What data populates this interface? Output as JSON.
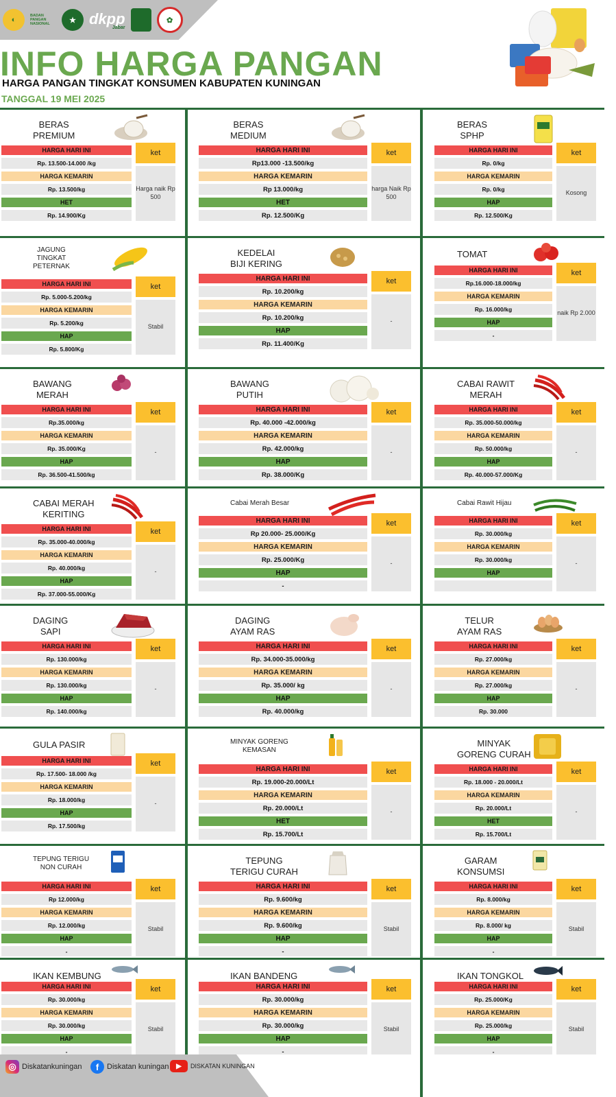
{
  "header": {
    "title": "INFO HARGA PANGAN",
    "subtitle": "HARGA PANGAN TINGKAT KONSUMEN  KABUPATEN KUNINGAN",
    "date": "TANGGAL 19 MEI 2025",
    "logo_bapanas": "BADAN PANGAN NASIONAL",
    "logo_dkpp": "dkpp",
    "logo_dkpp_sub": "Jabar"
  },
  "colors": {
    "green": "#6aa84f",
    "red": "#f04f4f",
    "orange": "#fbd7a0",
    "yellow": "#fbbf2e",
    "divider": "#2a6b3a"
  },
  "items": [
    {
      "name_lines": [
        "BERAS",
        "PREMIUM"
      ],
      "icon": "rice-sack-icon",
      "today_label": "HARGA HARI INI",
      "today": "Rp. 13.500-14.000 /kg",
      "yesterday_label": "HARGA KEMARIN",
      "yesterday": "Rp. 13.500/kg",
      "ref_label": "HET",
      "ref": "Rp. 14.900/Kg",
      "ket_label": "ket",
      "ket": "Harga naik Rp 500"
    },
    {
      "name_lines": [
        "BERAS",
        "MEDIUM"
      ],
      "icon": "rice-sack-icon",
      "today_label": "HARGA HARI INI",
      "today": "Rp13.000 -13.500/kg",
      "yesterday_label": "HARGA KEMARIN",
      "yesterday": "Rp 13.000/kg",
      "ref_label": "HET",
      "ref": "Rp. 12.500/Kg",
      "ket_label": "ket",
      "ket": "harga Naik Rp 500"
    },
    {
      "name_lines": [
        "BERAS",
        "SPHP"
      ],
      "icon": "rice-bag-icon",
      "today_label": "HARGA HARI INI",
      "today": "Rp. 0/kg",
      "yesterday_label": "HARGA KEMARIN",
      "yesterday": "Rp. 0/kg",
      "ref_label": "HAP",
      "ref": "Rp. 12.500/Kg",
      "ket_label": "ket",
      "ket": "Kosong"
    },
    {
      "name_lines": [
        "JAGUNG",
        "TINGKAT",
        "PETERNAK"
      ],
      "icon": "corn-icon",
      "today_label": "HARGA HARI INI",
      "today": "Rp. 5.000-5.200/kg",
      "yesterday_label": "HARGA KEMARIN",
      "yesterday": "Rp. 5.200/kg",
      "ref_label": "HAP",
      "ref": "Rp. 5.800/Kg",
      "ket_label": "ket",
      "ket": "Stabil"
    },
    {
      "name_lines": [
        "KEDELAI",
        "BIJI KERING"
      ],
      "icon": "soybean-icon",
      "today_label": "HARGA HARI INI",
      "today": "Rp. 10.200/kg",
      "yesterday_label": "HARGA KEMARIN",
      "yesterday": "Rp. 10.200/kg",
      "ref_label": "HAP",
      "ref": "Rp. 11.400/Kg",
      "ket_label": "ket",
      "ket": "-"
    },
    {
      "name_lines": [
        "TOMAT"
      ],
      "icon": "tomato-icon",
      "today_label": "HARGA HARI INI",
      "today": "Rp.16.000-18.000/kg",
      "yesterday_label": "HARGA KEMARIN",
      "yesterday": "Rp. 16.000/kg",
      "ref_label": "HAP",
      "ref": "-",
      "ket_label": "ket",
      "ket": "naik Rp 2.000"
    },
    {
      "name_lines": [
        "BAWANG",
        "MERAH"
      ],
      "icon": "shallot-icon",
      "today_label": "HARGA HARI INI",
      "today": "Rp.35.000/kg",
      "yesterday_label": "HARGA KEMARIN",
      "yesterday": "Rp. 35.000/Kg",
      "ref_label": "HAP",
      "ref": "Rp. 36.500-41.500/kg",
      "ket_label": "ket",
      "ket": "-"
    },
    {
      "name_lines": [
        "BAWANG",
        "PUTIH"
      ],
      "icon": "garlic-icon",
      "today_label": "HARGA HARI INI",
      "today": "Rp. 40.000 -42.000/kg",
      "yesterday_label": "HARGA KEMARIN",
      "yesterday": "Rp. 42.000/kg",
      "ref_label": "HAP",
      "ref": "Rp. 38.000/Kg",
      "ket_label": "ket",
      "ket": "-"
    },
    {
      "name_lines": [
        "CABAI RAWIT",
        "MERAH"
      ],
      "icon": "chili-icon",
      "today_label": "HARGA HARI INI",
      "today": "Rp. 35.000-50.000/kg",
      "yesterday_label": "HARGA KEMARIN",
      "yesterday": "Rp. 50.000/kg",
      "ref_label": "HAP",
      "ref": "Rp. 40.000-57.000/Kg",
      "ket_label": "ket",
      "ket": "-"
    },
    {
      "name_lines": [
        "CABAI MERAH",
        "KERITING"
      ],
      "icon": "chili-icon",
      "today_label": "HARGA HARI INI",
      "today": "Rp. 35.000-40.000/kg",
      "yesterday_label": "HARGA KEMARIN",
      "yesterday": "Rp. 40.000/kg",
      "ref_label": "HAP",
      "ref": "Rp. 37.000-55.000/Kg",
      "ket_label": "ket",
      "ket": "-"
    },
    {
      "name_lines": [
        "Cabai Merah Besar"
      ],
      "icon": "red-chili-icon",
      "today_label": "HARGA HARI INI",
      "today": "Rp 20.000- 25.000/Kg",
      "yesterday_label": "HARGA KEMARIN",
      "yesterday": "Rp. 25.000/Kg",
      "ref_label": "HAP",
      "ref": "-",
      "ket_label": "ket",
      "ket": "-"
    },
    {
      "name_lines": [
        "Cabai Rawit Hijau"
      ],
      "icon": "green-chili-icon",
      "today_label": "HARGA HARI INI",
      "today": "Rp. 30.000/kg",
      "yesterday_label": "HARGA KEMARIN",
      "yesterday": "Rp. 30.000/kg",
      "ref_label": "HAP",
      "ref": "",
      "ket_label": "ket",
      "ket": "-"
    },
    {
      "name_lines": [
        "DAGING",
        "SAPI"
      ],
      "icon": "beef-icon",
      "today_label": "HARGA HARI INI",
      "today": "Rp. 130.000/kg",
      "yesterday_label": "HARGA KEMARIN",
      "yesterday": "Rp. 130.000/kg",
      "ref_label": "HAP",
      "ref": "Rp. 140.000/kg",
      "ket_label": "ket",
      "ket": "-"
    },
    {
      "name_lines": [
        "DAGING",
        "AYAM RAS"
      ],
      "icon": "chicken-icon",
      "today_label": "HARGA HARI INI",
      "today": "Rp. 34.000-35.000/kg",
      "yesterday_label": "HARGA KEMARIN",
      "yesterday": "Rp. 35.000/ kg",
      "ref_label": "HAP",
      "ref": "Rp. 40.000/kg",
      "ket_label": "ket",
      "ket": "-"
    },
    {
      "name_lines": [
        "TELUR",
        "AYAM RAS"
      ],
      "icon": "egg-icon",
      "today_label": "HARGA HARI INI",
      "today": "Rp. 27.000/kg",
      "yesterday_label": "HARGA KEMARIN",
      "yesterday": "Rp. 27.000/kg",
      "ref_label": "HAP",
      "ref": "Rp. 30.000",
      "ket_label": "ket",
      "ket": "-"
    },
    {
      "name_lines": [
        "GULA PASIR"
      ],
      "icon": "sugar-icon",
      "today_label": "HARGA HARI INI",
      "today": "Rp. 17.500- 18.000 /kg",
      "yesterday_label": "HARGA KEMARIN",
      "yesterday": "Rp. 18.000/kg",
      "ref_label": "HAP",
      "ref": "Rp. 17.500/kg",
      "ket_label": "ket",
      "ket": "-"
    },
    {
      "name_lines": [
        "MINYAK GORENG",
        "KEMASAN"
      ],
      "icon": "oil-bottle-icon",
      "today_label": "HARGA HARI INI",
      "today": "Rp. 19.000-20.000/Lt",
      "yesterday_label": "HARGA KEMARIN",
      "yesterday": "Rp. 20.000/Lt",
      "ref_label": "HET",
      "ref": "Rp. 15.700/Lt",
      "ket_label": "ket",
      "ket": "-"
    },
    {
      "name_lines": [
        "MINYAK",
        "GORENG CURAH"
      ],
      "icon": "oil-bulk-icon",
      "today_label": "HARGA HARI INI",
      "today": "Rp. 18.000 - 20.000/Lt",
      "yesterday_label": "HARGA KEMARIN",
      "yesterday": "Rp. 20.000/Lt",
      "ref_label": "HET",
      "ref": "Rp. 15.700/Lt",
      "ket_label": "ket",
      "ket": "-"
    },
    {
      "name_lines": [
        "TEPUNG TERIGU",
        "NON CURAH"
      ],
      "icon": "flour-pack-icon",
      "today_label": "HARGA HARI INI",
      "today": "Rp 12.000/kg",
      "yesterday_label": "HARGA KEMARIN",
      "yesterday": "Rp. 12.000/kg",
      "ref_label": "HAP",
      "ref": "-",
      "ket_label": "ket",
      "ket": "Stabil"
    },
    {
      "name_lines": [
        "TEPUNG",
        "TERIGU CURAH"
      ],
      "icon": "flour-sack-icon",
      "today_label": "HARGA HARI INI",
      "today": "Rp. 9.600/kg",
      "yesterday_label": "HARGA KEMARIN",
      "yesterday": "Rp. 9.600/kg",
      "ref_label": "HAP",
      "ref": "-",
      "ket_label": "ket",
      "ket": "Stabil"
    },
    {
      "name_lines": [
        "GARAM",
        "KONSUMSI"
      ],
      "icon": "salt-icon",
      "today_label": "HARGA HARI INI",
      "today": "Rp. 8.000/kg",
      "yesterday_label": "HARGA KEMARIN",
      "yesterday": "Rp. 8.000/ kg",
      "ref_label": "HAP",
      "ref": "-",
      "ket_label": "ket",
      "ket": "Stabil"
    },
    {
      "name_lines": [
        "IKAN KEMBUNG"
      ],
      "icon": "fish-icon",
      "today_label": "HARGA HARI INI",
      "today": "Rp. 30.000/kg",
      "yesterday_label": "HARGA KEMARIN",
      "yesterday": "Rp. 30.000/kg",
      "ref_label": "HAP",
      "ref": "-",
      "ket_label": "ket",
      "ket": "Stabil"
    },
    {
      "name_lines": [
        "IKAN BANDENG"
      ],
      "icon": "fish-icon",
      "today_label": "HARGA HARI INI",
      "today": "Rp. 30.000/kg",
      "yesterday_label": "HARGA KEMARIN",
      "yesterday": "Rp. 30.000/kg",
      "ref_label": "HAP",
      "ref": "-",
      "ket_label": "ket",
      "ket": "Stabil"
    },
    {
      "name_lines": [
        "IKAN TONGKOL"
      ],
      "icon": "tuna-icon",
      "today_label": "HARGA HARI INI",
      "today": "Rp. 25.000/Kg",
      "yesterday_label": "HARGA KEMARIN",
      "yesterday": "Rp. 25.000/kg",
      "ref_label": "HAP",
      "ref": "-",
      "ket_label": "ket",
      "ket": "Stabil"
    }
  ],
  "footer": {
    "instagram": "Diskatankuningan",
    "facebook": "Diskatan kuningan",
    "youtube": "DISKATAN KUNINGAN"
  }
}
